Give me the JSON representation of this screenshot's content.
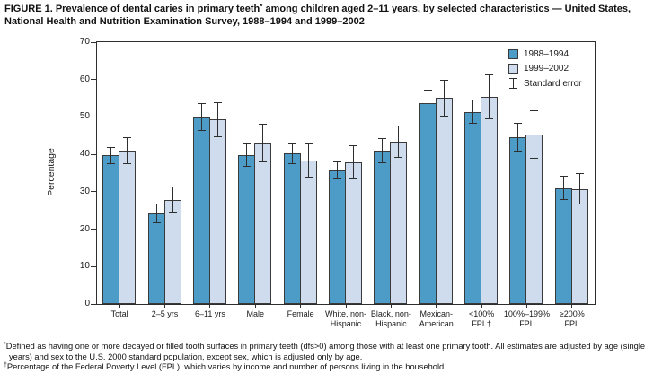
{
  "title": {
    "part1": "FIGURE 1. Prevalence of dental caries in primary teeth",
    "sup": "*",
    "part2": " among children aged 2–11 years, by selected characteristics — United States, National Health and Nutrition Examination Survey, 1988–1994 and 1999–2002"
  },
  "legend": {
    "se_label": "Standard error"
  },
  "chart_data": {
    "type": "bar",
    "title": "Prevalence of dental caries in primary teeth among children aged 2–11 years, NHANES 1988–1994 and 1999–2002",
    "xlabel": "",
    "ylabel": "Percentage",
    "ylim": [
      0,
      70
    ],
    "yticks": [
      0,
      10,
      20,
      30,
      40,
      50,
      60,
      70
    ],
    "grid": false,
    "legend_position": "top-right-inside",
    "error_bars": "standard error",
    "categories": [
      "Total",
      "2–5 yrs",
      "6–11 yrs",
      "Male",
      "Female",
      "White, non-Hispanic",
      "Black, non-Hispanic",
      "Mexican-American",
      "<100% FPL†",
      "100%–199% FPL",
      "≥200% FPL"
    ],
    "category_label_lines": [
      [
        "Total"
      ],
      [
        "2–5 yrs"
      ],
      [
        "6–11 yrs"
      ],
      [
        "Male"
      ],
      [
        "Female"
      ],
      [
        "White, non-",
        "Hispanic"
      ],
      [
        "Black, non-",
        "Hispanic"
      ],
      [
        "Mexican-",
        "American"
      ],
      [
        "<100%",
        "FPL†"
      ],
      [
        "100%–199%",
        "FPL"
      ],
      [
        "≥200%",
        "FPL"
      ]
    ],
    "series": [
      {
        "name": "1988–1994",
        "color": "#4d9bc7",
        "values": [
          39.7,
          24.2,
          49.9,
          39.8,
          40.2,
          35.7,
          41.0,
          53.6,
          51.4,
          44.6,
          31.0
        ],
        "standard_errors": [
          2.3,
          2.7,
          3.7,
          3.2,
          2.8,
          2.5,
          3.4,
          3.8,
          3.3,
          3.9,
          3.2
        ]
      },
      {
        "name": "1999–2002",
        "color": "#cedcee",
        "values": [
          41.0,
          27.9,
          49.3,
          43.0,
          38.4,
          37.9,
          43.3,
          55.1,
          55.4,
          45.3,
          30.8
        ],
        "standard_errors": [
          3.6,
          3.4,
          4.6,
          5.2,
          4.5,
          4.6,
          4.3,
          4.9,
          6.0,
          6.4,
          4.2
        ]
      }
    ]
  },
  "footnotes": [
    {
      "marker": "*",
      "text": "Defined as having one or more decayed or filled tooth surfaces in primary teeth (dfs>0) among those with at least one primary tooth. All estimates are adjusted by age (single years) and sex to the U.S. 2000 standard population, except sex, which is adjusted only by age."
    },
    {
      "marker": "†",
      "text": "Percentage of the Federal Poverty Level (FPL), which varies by income and number of persons living in the household."
    }
  ]
}
